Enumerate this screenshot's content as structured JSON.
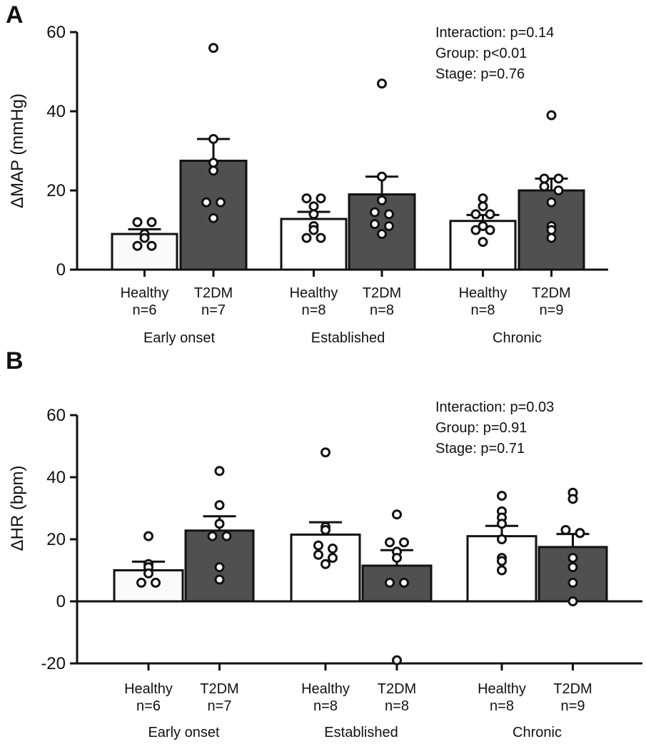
{
  "chart_data": [
    {
      "type": "bar",
      "panel": "A",
      "ylabel": "ΔMAP (mmHg)",
      "ylim": [
        0,
        60
      ],
      "yticks": [
        0,
        20,
        40,
        60
      ],
      "stages": [
        "Early onset",
        "Established",
        "Chronic"
      ],
      "annotations": [
        "Interaction: p=0.14",
        "Group: p<0.01",
        "Stage: p=0.76"
      ],
      "bars": [
        {
          "group": "Healthy",
          "n": "n=6",
          "stage": "Early onset",
          "mean": 9,
          "sem": 1.2,
          "fill": "#fafafa",
          "points": [
            12,
            12,
            9,
            8,
            6,
            6
          ]
        },
        {
          "group": "T2DM",
          "n": "n=7",
          "stage": "Early onset",
          "mean": 27.5,
          "sem": 5.5,
          "fill": "#505050",
          "points": [
            56,
            33,
            27,
            25,
            17,
            17,
            13
          ]
        },
        {
          "group": "Healthy",
          "n": "n=8",
          "stage": "Established",
          "mean": 12.8,
          "sem": 1.8,
          "fill": "#ffffff",
          "points": [
            18,
            18,
            16,
            14,
            11,
            10,
            8,
            8
          ]
        },
        {
          "group": "T2DM",
          "n": "n=8",
          "stage": "Established",
          "mean": 19,
          "sem": 4.5,
          "fill": "#505050",
          "points": [
            47,
            23.5,
            17.5,
            14.5,
            14,
            11.5,
            11,
            9
          ]
        },
        {
          "group": "Healthy",
          "n": "n=8",
          "stage": "Chronic",
          "mean": 12.3,
          "sem": 1.5,
          "fill": "#ffffff",
          "points": [
            18,
            16,
            14,
            14,
            11,
            10,
            10,
            7
          ]
        },
        {
          "group": "T2DM",
          "n": "n=9",
          "stage": "Chronic",
          "mean": 20,
          "sem": 3,
          "fill": "#505050",
          "points": [
            39,
            23,
            23,
            21,
            20,
            17,
            11,
            10,
            8
          ]
        }
      ]
    },
    {
      "type": "bar",
      "panel": "B",
      "ylabel": "ΔHR (bpm)",
      "ylim": [
        -20,
        60
      ],
      "yticks": [
        -20,
        0,
        20,
        40,
        60
      ],
      "stages": [
        "Early onset",
        "Established",
        "Chronic"
      ],
      "annotations": [
        "Interaction: p=0.03",
        "Group: p=0.91",
        "Stage: p=0.71"
      ],
      "bars": [
        {
          "group": "Healthy",
          "n": "n=6",
          "stage": "Early onset",
          "mean": 10,
          "sem": 2.8,
          "fill": "#fafafa",
          "points": [
            21,
            12,
            11,
            9,
            6,
            6
          ]
        },
        {
          "group": "T2DM",
          "n": "n=7",
          "stage": "Early onset",
          "mean": 22.8,
          "sem": 4.6,
          "fill": "#505050",
          "points": [
            42,
            31,
            25,
            21,
            21,
            11,
            7
          ]
        },
        {
          "group": "Healthy",
          "n": "n=8",
          "stage": "Established",
          "mean": 21.5,
          "sem": 4,
          "fill": "#ffffff",
          "points": [
            48,
            24,
            23,
            18,
            17,
            15,
            14,
            12
          ]
        },
        {
          "group": "T2DM",
          "n": "n=8",
          "stage": "Established",
          "mean": 11.5,
          "sem": 5,
          "fill": "#505050",
          "points": [
            28,
            19,
            19,
            16,
            14,
            6,
            6,
            -19
          ]
        },
        {
          "group": "Healthy",
          "n": "n=8",
          "stage": "Chronic",
          "mean": 21,
          "sem": 3.3,
          "fill": "#ffffff",
          "points": [
            34,
            29,
            27,
            25,
            20,
            14,
            13,
            10
          ]
        },
        {
          "group": "T2DM",
          "n": "n=9",
          "stage": "Chronic",
          "mean": 17.5,
          "sem": 4.2,
          "fill": "#505050",
          "points": [
            35,
            33,
            23,
            22,
            22,
            14,
            11,
            6,
            0
          ]
        }
      ]
    }
  ]
}
